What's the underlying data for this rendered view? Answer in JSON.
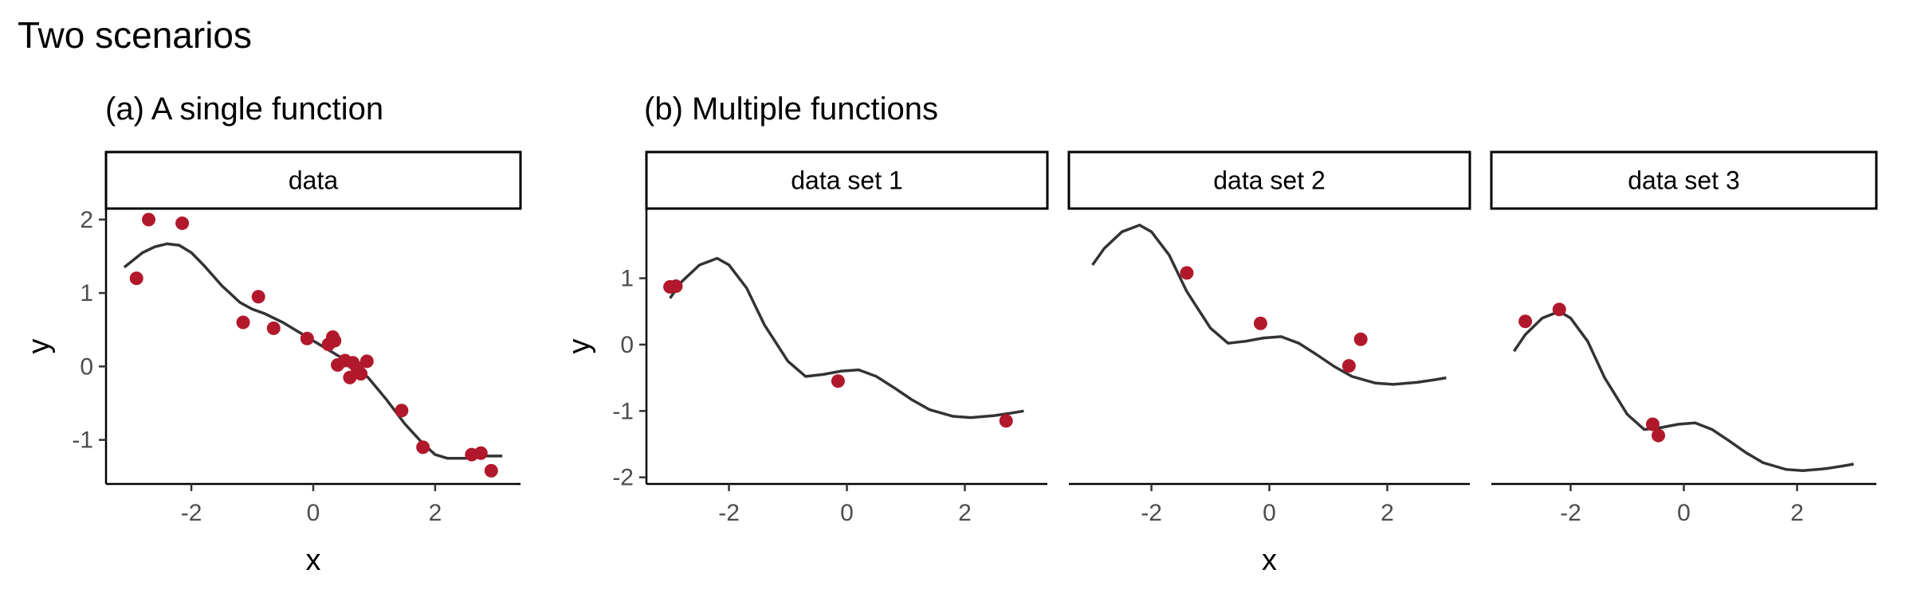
{
  "figure": {
    "title": "Two scenarios",
    "subtitle_a": "(a) A single function",
    "subtitle_b": "(b) Multiple functions"
  },
  "chart_data": [
    {
      "type": "scatter",
      "id": "a",
      "panel": "data",
      "xlabel": "x",
      "ylabel": "y",
      "xlim": [
        -3.4,
        3.4
      ],
      "ylim": [
        -1.6,
        2.15
      ],
      "xticks": [
        -2,
        0,
        2
      ],
      "yticks": [
        -1,
        0,
        1,
        2
      ],
      "point_color": "#B2182B",
      "points": {
        "x": [
          -2.9,
          -2.7,
          -2.15,
          -1.15,
          -0.9,
          -0.65,
          -0.1,
          0.25,
          0.32,
          0.35,
          0.4,
          0.52,
          0.6,
          0.65,
          0.72,
          0.78,
          0.88,
          1.45,
          1.8,
          2.6,
          2.75,
          2.92
        ],
        "y": [
          1.2,
          2.0,
          1.95,
          0.6,
          0.95,
          0.52,
          0.38,
          0.3,
          0.4,
          0.35,
          0.02,
          0.08,
          -0.15,
          0.05,
          -0.02,
          -0.1,
          0.07,
          -0.6,
          -1.1,
          -1.2,
          -1.18,
          -1.42
        ]
      },
      "curve": {
        "x": [
          -3.1,
          -2.8,
          -2.6,
          -2.4,
          -2.2,
          -2.0,
          -1.8,
          -1.5,
          -1.2,
          -1.0,
          -0.8,
          -0.5,
          -0.2,
          0.0,
          0.3,
          0.6,
          0.9,
          1.2,
          1.5,
          1.8,
          2.0,
          2.2,
          2.5,
          2.8,
          3.1
        ],
        "y": [
          1.35,
          1.55,
          1.63,
          1.67,
          1.65,
          1.55,
          1.38,
          1.1,
          0.87,
          0.78,
          0.72,
          0.6,
          0.45,
          0.35,
          0.2,
          0.05,
          -0.15,
          -0.45,
          -0.78,
          -1.05,
          -1.2,
          -1.25,
          -1.25,
          -1.22,
          -1.22
        ]
      }
    },
    {
      "type": "scatter",
      "id": "b",
      "panels": [
        "data set 1",
        "data set 2",
        "data set 3"
      ],
      "xlabel": "x",
      "ylabel": "y",
      "xlim": [
        -3.4,
        3.4
      ],
      "ylim": [
        -2.1,
        2.05
      ],
      "xticks": [
        -2,
        0,
        2
      ],
      "yticks": [
        -2,
        -1,
        0,
        1
      ],
      "point_color": "#B2182B",
      "curve_x": [
        -3.0,
        -2.8,
        -2.5,
        -2.2,
        -2.0,
        -1.7,
        -1.4,
        -1.0,
        -0.7,
        -0.4,
        -0.1,
        0.2,
        0.5,
        0.8,
        1.1,
        1.4,
        1.8,
        2.1,
        2.5,
        2.8,
        3.0
      ],
      "curve_base": [
        0.7,
        0.95,
        1.2,
        1.3,
        1.2,
        0.85,
        0.3,
        -0.25,
        -0.48,
        -0.45,
        -0.4,
        -0.38,
        -0.48,
        -0.65,
        -0.83,
        -0.98,
        -1.08,
        -1.1,
        -1.07,
        -1.03,
        -1.0
      ],
      "series": [
        {
          "offset": 0.0,
          "points": {
            "x": [
              -3.0,
              -2.9,
              -0.15,
              2.7
            ],
            "y": [
              0.87,
              0.88,
              -0.55,
              -1.15
            ]
          }
        },
        {
          "offset": 0.5,
          "points": {
            "x": [
              -1.4,
              -0.15,
              1.35,
              1.55
            ],
            "y": [
              1.08,
              0.32,
              -0.32,
              0.08
            ]
          }
        },
        {
          "offset": -0.8,
          "points": {
            "x": [
              -2.8,
              -2.2,
              -0.55,
              -0.45
            ],
            "y": [
              0.35,
              0.53,
              -1.2,
              -1.37
            ]
          }
        }
      ]
    }
  ]
}
